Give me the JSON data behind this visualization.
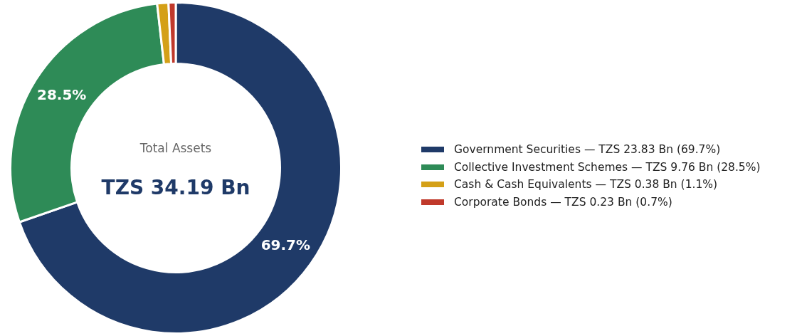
{
  "chart_data": {
    "type": "donut",
    "categories": [
      "Government Securities — TZS 23.83 Bn (69.7%)",
      "Collective Investment Schemes — TZS 9.76 Bn (28.5%)",
      "Cash & Cash Equivalents — TZS 0.38 Bn (1.1%)",
      "Corporate Bonds — TZS 0.23 Bn (0.7%)"
    ],
    "values": [
      69.7,
      28.5,
      1.1,
      0.7
    ],
    "colors": [
      "#1f3a68",
      "#2e8b57",
      "#d4a017",
      "#c0392b"
    ],
    "value_labels": [
      "69.7%",
      "28.5%",
      null,
      null
    ],
    "annotations": [
      "Total Assets",
      "TZS 34.19 Bn"
    ],
    "legend": "right"
  }
}
